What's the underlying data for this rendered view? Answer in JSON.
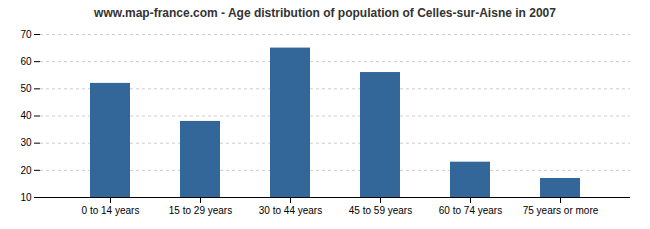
{
  "chart_data": {
    "type": "bar",
    "title": "www.map-france.com - Age distribution of population of Celles-sur-Aisne in 2007",
    "categories": [
      "0 to 14 years",
      "15 to 29 years",
      "30 to 44 years",
      "45 to 59 years",
      "60 to 74 years",
      "75 years or more"
    ],
    "values": [
      52,
      38,
      65,
      56,
      23,
      17
    ],
    "color": "#336699",
    "ylim": [
      10,
      70
    ],
    "yticks": [
      10,
      20,
      30,
      40,
      50,
      60,
      70
    ],
    "grid": true
  }
}
